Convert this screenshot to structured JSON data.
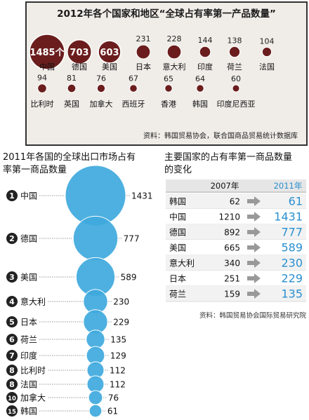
{
  "chart_data": [
    {
      "type": "bubble",
      "title": "2012年各个国家和地区“全球占有率第一产品数量”",
      "categories": [
        "中国",
        "德国",
        "美国",
        "日本",
        "意大利",
        "印度",
        "荷兰",
        "法国",
        "比利时",
        "英国",
        "加拿大",
        "西班牙",
        "香港",
        "韩国",
        "印度尼西亚"
      ],
      "values": [
        1485,
        703,
        603,
        231,
        228,
        144,
        138,
        104,
        94,
        81,
        76,
        67,
        65,
        64,
        60
      ],
      "value_labels": [
        "1485个",
        "703",
        "603",
        "231",
        "228",
        "144",
        "138",
        "104",
        "94",
        "81",
        "76",
        "67",
        "65",
        "64",
        "60"
      ],
      "source": "资料：韩国贸易协会，联合国商品贸易统计数据库",
      "colors": {
        "bubble": "#6b1d1d",
        "highlight": "#8c2c2c",
        "background": "#f0ede8",
        "border": "#333333"
      }
    },
    {
      "type": "bubble",
      "title": [
        "2011年各国的全球出口市场占有",
        "率第一商品数量"
      ],
      "categories": [
        "中国",
        "德国",
        "美国",
        "意大利",
        "日本",
        "荷兰",
        "印度",
        "比利时",
        "法国",
        "加拿大",
        "韩国"
      ],
      "ranks": [
        "1",
        "2",
        "3",
        "4",
        "5",
        "6",
        "7",
        "8",
        "8",
        "10",
        "15"
      ],
      "values": [
        1431,
        777,
        589,
        230,
        229,
        135,
        129,
        112,
        112,
        76,
        61
      ],
      "colors": {
        "bubble": "#3fa9dd",
        "badge": "#222222"
      }
    },
    {
      "type": "table",
      "title": [
        "主要国家的占有率第一商品数量",
        "的变化"
      ],
      "columns": [
        "2007年",
        "2011年"
      ],
      "rows": [
        {
          "country": "韩国",
          "y2007": "62",
          "y2011": "61"
        },
        {
          "country": "中国",
          "y2007": "1210",
          "y2011": "1431"
        },
        {
          "country": "德国",
          "y2007": "892",
          "y2011": "777"
        },
        {
          "country": "美国",
          "y2007": "665",
          "y2011": "589"
        },
        {
          "country": "意大利",
          "y2007": "340",
          "y2011": "230"
        },
        {
          "country": "日本",
          "y2007": "251",
          "y2011": "229"
        },
        {
          "country": "荷兰",
          "y2007": "159",
          "y2011": "135"
        }
      ],
      "source": "资料：韩国贸易协会国际贸易研究院",
      "colors": {
        "value2011": "#2a8fcf",
        "arrow": "#999999",
        "header": "#e6e6e6",
        "band": "#f2f2f2"
      }
    }
  ]
}
